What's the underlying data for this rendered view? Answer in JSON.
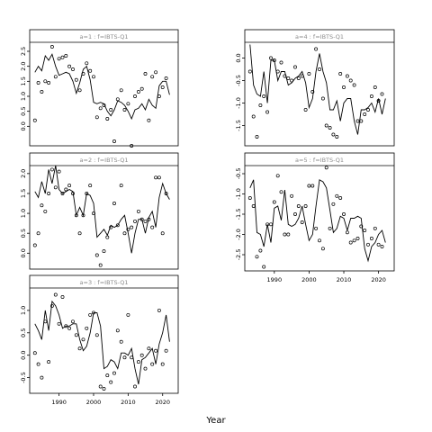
{
  "chart_data": {
    "type": "scatter",
    "xlabel": "Year",
    "panels": [
      {
        "strip": "a=1 : f=IBTS-Q1",
        "ylim": [
          -0.65,
          2.8
        ],
        "yticks": [
          0.0,
          0.5,
          1.0,
          1.5,
          2.0,
          2.5
        ],
        "fit": {
          "x": [
            1983,
            1984,
            1985,
            1986,
            1987,
            1988,
            1989,
            1990,
            1991,
            1992,
            1993,
            1994,
            1995,
            1996,
            1997,
            1998,
            1999,
            2000,
            2001,
            2002,
            2003,
            2004,
            2005,
            2006,
            2007,
            2008,
            2009,
            2010,
            2011,
            2012,
            2013,
            2014,
            2015,
            2016,
            2017,
            2018,
            2019,
            2020,
            2021,
            2022
          ],
          "y": [
            1.8,
            2.0,
            1.85,
            2.35,
            2.2,
            2.4,
            2.0,
            1.7,
            1.75,
            1.8,
            1.75,
            1.5,
            1.1,
            1.45,
            1.9,
            2.0,
            1.55,
            0.8,
            0.75,
            0.8,
            0.75,
            0.5,
            0.35,
            0.55,
            0.85,
            0.8,
            0.7,
            0.5,
            0.25,
            0.55,
            0.6,
            0.75,
            0.55,
            0.9,
            0.7,
            0.6,
            1.35,
            1.5,
            1.5,
            1.05
          ]
        },
        "points": {
          "x": [
            1983,
            1984,
            1985,
            1986,
            1987,
            1988,
            1989,
            1990,
            1991,
            1992,
            1993,
            1994,
            1995,
            1996,
            1997,
            1998,
            1999,
            2000,
            2001,
            2002,
            2003,
            2004,
            2005,
            2006,
            2007,
            2008,
            2009,
            2010,
            2011,
            2012,
            2013,
            2014,
            2015,
            2016,
            2017,
            2018,
            2019,
            2020,
            2021
          ],
          "y": [
            0.2,
            1.45,
            1.15,
            1.5,
            1.45,
            2.65,
            1.65,
            2.25,
            2.3,
            2.35,
            2.0,
            1.9,
            1.55,
            1.2,
            1.75,
            2.1,
            1.85,
            1.65,
            0.3,
            0.6,
            0.7,
            0.25,
            0.55,
            -0.5,
            0.9,
            1.2,
            0.55,
            0.75,
            -0.65,
            1.0,
            1.15,
            1.25,
            1.75,
            0.2,
            1.65,
            1.8,
            1.0,
            1.3,
            1.6
          ]
        }
      },
      {
        "strip": "a=2 : f=IBTS-Q1",
        "ylim": [
          -0.4,
          2.2
        ],
        "yticks": [
          0.0,
          0.5,
          1.0,
          1.5,
          2.0
        ],
        "fit": {
          "x": [
            1983,
            1984,
            1985,
            1986,
            1987,
            1988,
            1989,
            1990,
            1991,
            1992,
            1993,
            1994,
            1995,
            1996,
            1997,
            1998,
            1999,
            2000,
            2001,
            2002,
            2003,
            2004,
            2005,
            2006,
            2007,
            2008,
            2009,
            2010,
            2011,
            2012,
            2013,
            2014,
            2015,
            2016,
            2017,
            2018,
            2019,
            2020,
            2021,
            2022
          ],
          "y": [
            1.55,
            1.4,
            1.8,
            1.5,
            2.1,
            1.75,
            2.2,
            1.6,
            1.5,
            1.55,
            1.6,
            1.55,
            0.95,
            1.15,
            0.95,
            1.5,
            1.45,
            1.25,
            0.4,
            0.5,
            0.6,
            0.45,
            0.7,
            0.65,
            0.7,
            0.85,
            0.95,
            0.5,
            0.0,
            0.5,
            0.85,
            0.85,
            0.5,
            0.9,
            1.05,
            0.65,
            1.4,
            1.75,
            1.5,
            1.35
          ]
        },
        "points": {
          "x": [
            1983,
            1984,
            1985,
            1986,
            1987,
            1988,
            1989,
            1990,
            1991,
            1992,
            1993,
            1994,
            1995,
            1996,
            1997,
            1998,
            1999,
            2000,
            2001,
            2002,
            2003,
            2004,
            2005,
            2006,
            2007,
            2008,
            2009,
            2010,
            2011,
            2012,
            2013,
            2014,
            2015,
            2016,
            2017,
            2018,
            2019,
            2020,
            2021
          ],
          "y": [
            0.2,
            0.5,
            1.2,
            1.05,
            1.5,
            2.1,
            1.65,
            2.05,
            1.5,
            1.6,
            1.7,
            1.5,
            0.95,
            0.5,
            0.95,
            1.5,
            1.7,
            1.0,
            -0.05,
            -0.3,
            0.05,
            0.4,
            0.65,
            1.25,
            0.7,
            1.7,
            0.5,
            0.6,
            0.65,
            0.8,
            1.05,
            0.85,
            0.8,
            0.85,
            0.65,
            1.9,
            1.9,
            0.5,
            1.5
          ]
        }
      },
      {
        "strip": "a=3 : f=IBTS-Q1",
        "ylim": [
          -0.85,
          1.5
        ],
        "yticks": [
          -0.5,
          0.0,
          0.5,
          1.0
        ],
        "fit": {
          "x": [
            1983,
            1984,
            1985,
            1986,
            1987,
            1988,
            1989,
            1990,
            1991,
            1992,
            1993,
            1994,
            1995,
            1996,
            1997,
            1998,
            1999,
            2000,
            2001,
            2002,
            2003,
            2004,
            2005,
            2006,
            2007,
            2008,
            2009,
            2010,
            2011,
            2012,
            2013,
            2014,
            2015,
            2016,
            2017,
            2018,
            2019,
            2020,
            2021,
            2022
          ],
          "y": [
            0.7,
            0.55,
            0.35,
            1.0,
            0.55,
            1.2,
            1.1,
            0.9,
            0.6,
            0.65,
            0.65,
            0.7,
            0.7,
            0.35,
            0.1,
            0.2,
            0.5,
            0.95,
            0.95,
            0.65,
            -0.3,
            -0.25,
            -0.1,
            -0.15,
            -0.3,
            0.05,
            0.05,
            0.0,
            0.15,
            -0.3,
            -0.65,
            -0.1,
            -0.05,
            0.05,
            0.15,
            -0.2,
            0.25,
            0.5,
            0.9,
            0.3
          ]
        },
        "points": {
          "x": [
            1983,
            1984,
            1985,
            1986,
            1987,
            1988,
            1989,
            1990,
            1991,
            1992,
            1993,
            1994,
            1995,
            1996,
            1997,
            1998,
            1999,
            2000,
            2001,
            2002,
            2003,
            2004,
            2005,
            2006,
            2007,
            2008,
            2009,
            2010,
            2011,
            2012,
            2013,
            2014,
            2015,
            2016,
            2017,
            2018,
            2019,
            2020,
            2021
          ],
          "y": [
            0.05,
            -0.2,
            -0.5,
            0.75,
            -0.15,
            1.1,
            1.35,
            0.7,
            1.3,
            0.65,
            0.6,
            0.75,
            0.45,
            0.15,
            0.35,
            0.6,
            0.9,
            0.95,
            0.45,
            -0.7,
            -0.75,
            -0.45,
            -0.6,
            -0.4,
            0.55,
            0.3,
            -0.05,
            0.9,
            -0.05,
            -0.7,
            -0.15,
            0.0,
            -0.3,
            0.15,
            -0.2,
            0.1,
            1.0,
            -0.2,
            0.1
          ]
        }
      },
      {
        "strip": "a=4 : f=IBTS-Q1",
        "ylim": [
          -1.95,
          0.35
        ],
        "yticks": [
          -1.5,
          -1.0,
          -0.5,
          0.0
        ],
        "fit": {
          "x": [
            1983,
            1984,
            1985,
            1986,
            1987,
            1988,
            1989,
            1990,
            1991,
            1992,
            1993,
            1994,
            1995,
            1996,
            1997,
            1998,
            1999,
            2000,
            2001,
            2002,
            2003,
            2004,
            2005,
            2006,
            2007,
            2008,
            2009,
            2010,
            2011,
            2012,
            2013,
            2014,
            2015,
            2016,
            2017,
            2018,
            2019,
            2020,
            2021,
            2022
          ],
          "y": [
            0.3,
            -0.6,
            -0.8,
            -0.85,
            -0.3,
            -1.0,
            -0.05,
            -0.05,
            -0.5,
            -0.3,
            -0.3,
            -0.6,
            -0.55,
            -0.45,
            -0.4,
            -0.3,
            -0.55,
            -1.1,
            -0.9,
            -0.3,
            0.1,
            -0.3,
            -0.55,
            -1.15,
            -1.15,
            -0.95,
            -1.4,
            -1.0,
            -0.9,
            -0.9,
            -1.4,
            -1.7,
            -1.15,
            -1.15,
            -1.1,
            -1.0,
            -1.2,
            -0.9,
            -1.25,
            -0.9
          ]
        },
        "points": {
          "x": [
            1983,
            1984,
            1985,
            1986,
            1987,
            1988,
            1989,
            1990,
            1991,
            1992,
            1993,
            1994,
            1995,
            1996,
            1997,
            1998,
            1999,
            2000,
            2001,
            2002,
            2003,
            2004,
            2005,
            2006,
            2007,
            2008,
            2009,
            2010,
            2011,
            2012,
            2013,
            2014,
            2015,
            2016,
            2017,
            2018,
            2019,
            2020,
            2021
          ],
          "y": [
            -0.3,
            -1.3,
            -1.75,
            -1.05,
            -0.85,
            -1.2,
            0.0,
            -0.05,
            -0.3,
            -0.1,
            -0.4,
            -0.45,
            -0.5,
            -0.2,
            -0.45,
            -0.4,
            -1.15,
            -0.35,
            -0.75,
            0.2,
            -0.25,
            -0.9,
            -1.5,
            -1.55,
            -1.7,
            -1.75,
            -0.35,
            -0.65,
            -0.4,
            -0.5,
            -0.6,
            -1.4,
            -1.4,
            -1.25,
            -1.15,
            -0.85,
            -0.65,
            -0.95,
            -0.8
          ]
        }
      },
      {
        "strip": "a=5 : f=IBTS-Q1",
        "ylim": [
          -2.9,
          -0.3
        ],
        "yticks": [
          -2.5,
          -2.0,
          -1.5,
          -1.0,
          -0.5
        ],
        "fit": {
          "x": [
            1983,
            1984,
            1985,
            1986,
            1987,
            1988,
            1989,
            1990,
            1991,
            1992,
            1993,
            1994,
            1995,
            1996,
            1997,
            1998,
            1999,
            2000,
            2001,
            2002,
            2003,
            2004,
            2005,
            2006,
            2007,
            2008,
            2009,
            2010,
            2011,
            2012,
            2013,
            2014,
            2015,
            2016,
            2017,
            2018,
            2019,
            2020,
            2021,
            2022
          ],
          "y": [
            -0.85,
            -0.65,
            -1.95,
            -2.0,
            -2.3,
            -1.75,
            -2.2,
            -1.35,
            -1.3,
            -1.65,
            -0.9,
            -1.75,
            -1.8,
            -1.75,
            -1.6,
            -1.3,
            -1.75,
            -2.15,
            -2.0,
            -1.3,
            -0.65,
            -0.7,
            -0.85,
            -1.4,
            -1.95,
            -1.85,
            -1.55,
            -1.6,
            -1.9,
            -1.6,
            -1.6,
            -1.55,
            -1.6,
            -2.35,
            -2.65,
            -2.3,
            -2.2,
            -2.0,
            -1.9,
            -2.2
          ]
        },
        "points": {
          "x": [
            1983,
            1984,
            1985,
            1986,
            1987,
            1988,
            1989,
            1990,
            1991,
            1992,
            1993,
            1994,
            1995,
            1996,
            1997,
            1998,
            1999,
            2000,
            2001,
            2002,
            2003,
            2004,
            2005,
            2006,
            2007,
            2008,
            2009,
            2010,
            2011,
            2012,
            2013,
            2014,
            2015,
            2016,
            2017,
            2018,
            2019,
            2020,
            2021
          ],
          "y": [
            -1.1,
            -1.3,
            -2.55,
            -2.4,
            -2.8,
            -1.75,
            -1.75,
            -1.2,
            -0.55,
            -0.95,
            -2.0,
            -2.0,
            -1.05,
            -1.5,
            -1.3,
            -1.7,
            -1.3,
            -0.8,
            -0.8,
            -1.85,
            -2.15,
            -2.35,
            -0.35,
            -1.85,
            -1.25,
            -1.05,
            -1.1,
            -1.5,
            -1.95,
            -2.2,
            -2.15,
            -2.1,
            -1.8,
            -1.9,
            -2.25,
            -2.1,
            -1.85,
            -2.25,
            -2.3
          ]
        }
      }
    ],
    "xticks": [
      1990,
      2000,
      2010,
      2020
    ]
  }
}
